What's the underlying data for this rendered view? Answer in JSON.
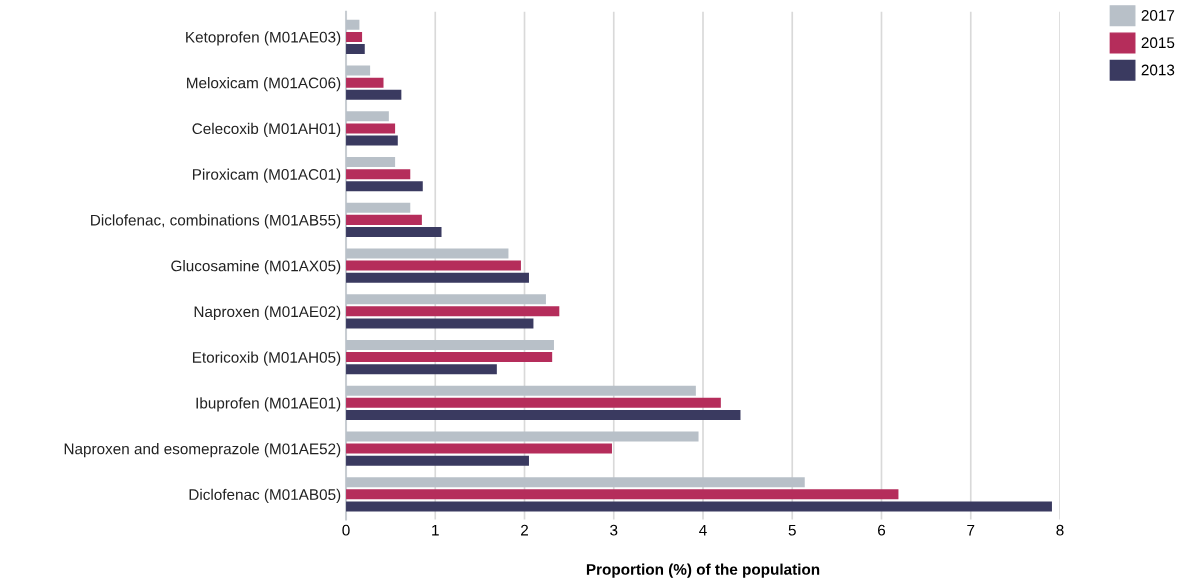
{
  "chart_data": {
    "type": "bar",
    "orientation": "horizontal",
    "xlabel": "Proportion (%) of the population",
    "categories": [
      "Ketoprofen (M01AE03)",
      "Meloxicam (M01AC06)",
      "Celecoxib (M01AH01)",
      "Piroxicam (M01AC01)",
      "Diclofenac, combinations (M01AB55)",
      "Glucosamine (M01AX05)",
      "Naproxen (M01AE02)",
      "Etoricoxib (M01AH05)",
      "Ibuprofen (M01AE01)",
      "Naproxen and esomeprazole (M01AE52)",
      "Diclofenac (M01AB05)"
    ],
    "series": [
      {
        "name": "2017",
        "color": "#b8c0c8",
        "values": [
          0.15,
          0.27,
          0.48,
          0.55,
          0.72,
          1.82,
          2.24,
          2.33,
          3.92,
          3.95,
          5.14
        ]
      },
      {
        "name": "2015",
        "color": "#b52d5b",
        "values": [
          0.18,
          0.42,
          0.55,
          0.72,
          0.85,
          1.96,
          2.39,
          2.31,
          4.2,
          2.98,
          6.19
        ]
      },
      {
        "name": "2013",
        "color": "#3a3a60",
        "values": [
          0.21,
          0.62,
          0.58,
          0.86,
          1.07,
          2.05,
          2.1,
          1.69,
          4.42,
          2.05,
          7.91
        ]
      }
    ],
    "xlim": [
      0,
      8
    ],
    "xticks": [
      0,
      1,
      2,
      3,
      4,
      5,
      6,
      7,
      8
    ],
    "grid": "x",
    "legend": "top right"
  }
}
